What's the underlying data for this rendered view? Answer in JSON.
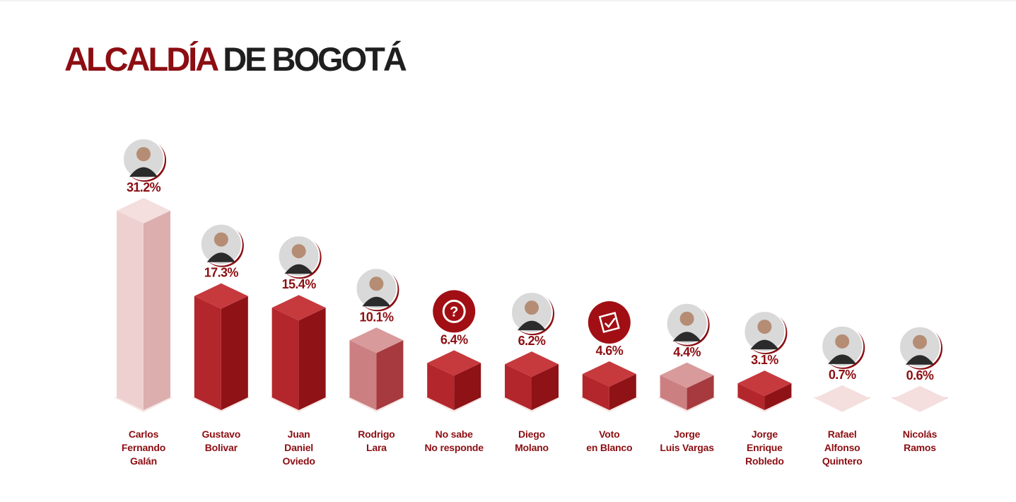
{
  "title": {
    "part1": "ALCALDÍA",
    "part2": "DE BOGOTÁ"
  },
  "colors": {
    "title_red": "#8c0e12",
    "title_dark": "#1f1f1f",
    "bar_pink": "#e8bcbc",
    "bar_mid": "#c97d7f",
    "bar_red": "#b3262b",
    "label": "#8c0e12"
  },
  "chart_data": {
    "type": "bar",
    "categories": [
      [
        "Carlos",
        "Fernando",
        "Galán"
      ],
      [
        "Gustavo",
        "Bolivar"
      ],
      [
        "Juan",
        "Daniel",
        "Oviedo"
      ],
      [
        "Rodrigo",
        "Lara"
      ],
      [
        "No sabe",
        "No responde"
      ],
      [
        "Diego",
        "Molano"
      ],
      [
        "Voto",
        "en Blanco"
      ],
      [
        "Jorge",
        "Luis Vargas"
      ],
      [
        "Jorge",
        "Enrique",
        "Robledo"
      ],
      [
        "Rafael",
        "Alfonso",
        "Quintero"
      ],
      [
        "Nicolás",
        "Ramos"
      ]
    ],
    "values": [
      31.2,
      17.3,
      15.4,
      10.1,
      6.4,
      6.2,
      4.6,
      4.4,
      3.1,
      0.7,
      0.6
    ],
    "value_labels": [
      "31.2%",
      "17.3%",
      "15.4%",
      "10.1%",
      "6.4%",
      "6.2%",
      "4.6%",
      "4.4%",
      "3.1%",
      "0.7%",
      "0.6%"
    ],
    "bar_colors": [
      "pink",
      "red",
      "red",
      "mid",
      "red",
      "red",
      "red",
      "mid",
      "red",
      "pink",
      "pink"
    ],
    "icons": [
      "candidate-photo",
      "candidate-photo",
      "candidate-photo",
      "candidate-photo",
      "question-mark-icon",
      "candidate-photo",
      "ballot-check-icon",
      "candidate-photo",
      "candidate-photo",
      "candidate-photo",
      "candidate-photo"
    ],
    "ylim": [
      0,
      31.2
    ]
  }
}
